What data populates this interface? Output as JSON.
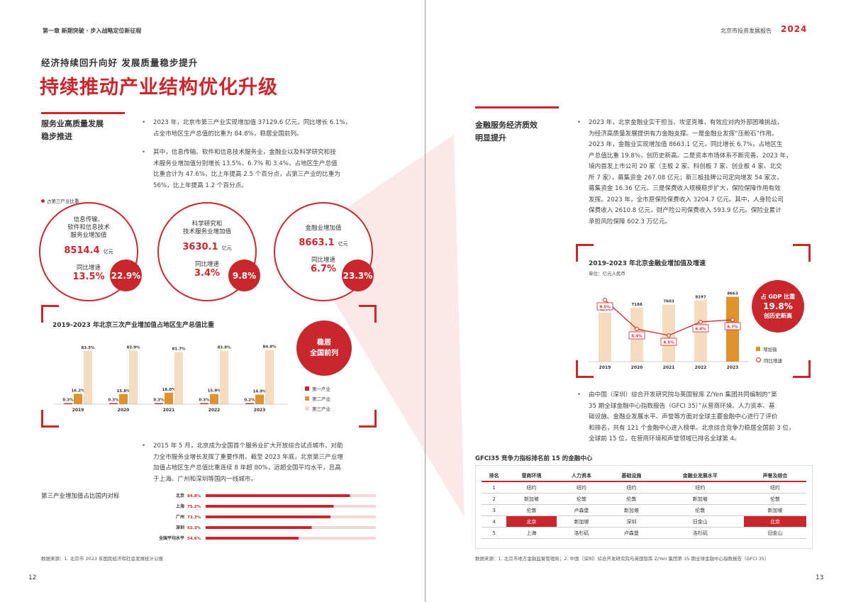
{
  "left": {
    "header": "第一章 新期突破 · 步入战略定位新征程",
    "subtitle": "经济持续回升向好 发展质量稳步提升",
    "title": "持续推动产业结构优化升级",
    "section1_heading_l1": "服务业高质量发展",
    "section1_heading_l2": "稳步推进",
    "bullet1_lines": [
      "2023 年，北京市第三产业实现增加值 37129.6 亿元，同比增长 6.1%，",
      "占全市地区生产总值的比重为 84.8%，稳居全国前列。"
    ],
    "bullet2_lines": [
      "其中，信息传输、软件和信息技术服务业，金融业以及科学研究和技",
      "术服务业增加值分别增长 13.5%、6.7% 和 3.4%，占地区生产总值",
      "比重合计为 47.6%，比上年提高 2.5 个百分点，占第三产业的比重为",
      "56%，比上年提高 1.2 个百分点。"
    ],
    "circle_legend": "占第三产业比重",
    "circles": [
      {
        "name_lines": [
          "信息传输、",
          "软件和信息技术",
          "服务业增加值"
        ],
        "value": "8514.4",
        "unit": "亿元",
        "growth_label": "同比增速",
        "growth": "13.5%",
        "share": "22.9%"
      },
      {
        "name_lines": [
          "科学研究和",
          "技术服务业增加值"
        ],
        "value": "3630.1",
        "unit": "亿元",
        "growth_label": "同比增速",
        "growth": "3.4%",
        "share": "9.8%"
      },
      {
        "name_lines": [
          "金融业增加值"
        ],
        "value": "8663.1",
        "unit": "亿元",
        "growth_label": "同比增速",
        "growth": "6.7%",
        "share": "23.3%"
      }
    ],
    "chart1_badge_l1": "稳居",
    "chart1_badge_l2": "全国前列",
    "bullet3_lines": [
      "2015 年 5 月，北京成为全国首个服务业扩大开放综合试点城市，对助",
      "力全市服务业增长发挥了重要作用。截至 2023 年底，北京第三产业增",
      "加值占地区生产总值比重连续 8 年超 80%，远超全国平均水平，且高",
      "于上海、广州和深圳等国内一线城市。"
    ],
    "chart3_title": "第三产业增加值占比国内对标",
    "source": "数据来源：1. 北京市 2023 年国民经济和社会发展统计公报",
    "page_number": "12"
  },
  "right": {
    "header": "北京市投资发展报告",
    "header_year": "2024",
    "section_heading_l1": "金融服务经济质效",
    "section_heading_l2": "明显提升",
    "bullet1_lines": [
      "2023 年，北京金融业实干担当、攻坚克难，有效应对内外部困难挑战，",
      "为经济高质量发展提供有力金融支撑。一是金融业发挥“压舱石”作用。",
      "2023 年，金融业实现增加值 8663.1 亿元，同比增长 6.7%，占地区生",
      "产总值比重 19.8%，创历史新高。二是资本市场体系不断完善。2023 年，",
      "境内首发上市公司 20 家（主板 2 家、科创板 7 家、创业板 4 家、北交",
      "所 7 家），募集资金 267.08 亿元；新三板挂牌公司定向增发 54 家次，",
      "募集资金 16.36 亿元。三是保费收入规模稳步扩大，保险保障作用有效",
      "发挥。2023 年，全市原保险保费收入 3204.7 亿元。其中，人身险公司",
      "保费收入 2610.8 亿元，财产险公司保费收入 593.9 亿元。保险业累计",
      "承担风险保障 602.3 万亿元。"
    ],
    "chart2_badge_l1": "占 GDP 比重",
    "chart2_badge_l2": "19.8%",
    "chart2_badge_l3": "创历史新高",
    "bullet2_lines": [
      "由中国（深圳）综合开发研究院与英国智库 Z/Yen 集团共同编制的“第",
      "35 期全球金融中心指数报告（GFCI 35）”从营商环境、人力资本、基",
      "础设施、金融业发展水平、声誉等方面对全球主要金融中心进行了评价",
      "和排名，共有 121 个金融中心进入榜单。北京综合竞争力稳居全国前 3 位，",
      "全球前 15 位，在营商环境和声誉领域已排名全球第 4。"
    ],
    "table_title": "GFCI35 竞争力指标排名前 15 的金融中心",
    "table": {
      "headers": [
        "排名",
        "营商环境",
        "人力资本",
        "基础设施",
        "金融业发展水平",
        "声誉及综合"
      ],
      "rows": [
        [
          "1",
          "纽约",
          "纽约",
          "纽约",
          "纽约",
          "纽约"
        ],
        [
          "2",
          "新加坡",
          "伦敦",
          "伦敦",
          "新加坡",
          "伦敦"
        ],
        [
          "3",
          "伦敦",
          "卢森堡",
          "新加坡",
          "伦敦",
          "新加坡"
        ],
        [
          "4",
          "北京",
          "新加坡",
          "深圳",
          "旧金山",
          "北京"
        ],
        [
          "5",
          "上海",
          "洛杉矶",
          "卢森堡",
          "洛杉矶",
          "旧金山"
        ]
      ],
      "highlight_cells": [
        [
          3,
          1
        ],
        [
          3,
          5
        ]
      ]
    },
    "source": "数据来源：1. 北京市地方金融监督管理局；2. 中国（深圳）综合开发研究院与英国智库 Z/Yen 集团第 35 期全球金融中心指数报告（GFCI 35）",
    "page_number": "13"
  },
  "colors": {
    "accent": "#c8272d",
    "orange": "#e0922f",
    "peach": "#f5dcc0"
  },
  "chart_data": [
    {
      "type": "bar",
      "title": "2019-2023 年北京三次产业增加值占地区生产总值比重",
      "categories": [
        "2019",
        "2020",
        "2021",
        "2022",
        "2023"
      ],
      "series": [
        {
          "name": "第一产业",
          "values": [
            0.3,
            0.3,
            0.3,
            0.3,
            0.2
          ],
          "labels": [
            "0.3%",
            "0.3%",
            "0.3%",
            "0.3%",
            "0.2%"
          ],
          "color": "#c8272d"
        },
        {
          "name": "第二产业",
          "values": [
            16.2,
            15.8,
            18.0,
            15.9,
            14.9
          ],
          "labels": [
            "16.2%",
            "15.8%",
            "18.0%",
            "15.9%",
            "14.9%"
          ],
          "color": "#e0922f"
        },
        {
          "name": "第三产业",
          "values": [
            83.5,
            83.9,
            81.7,
            83.8,
            84.8
          ],
          "labels": [
            "83.5%",
            "83.9%",
            "81.7%",
            "83.8%",
            "84.8%"
          ],
          "color": "#f5dcc0"
        }
      ]
    },
    {
      "type": "bar",
      "title": "2019-2023 年北京金融业增加值及增速",
      "unit_label": "单位：亿元人民币",
      "categories": [
        "2019",
        "2020",
        "2021",
        "2022",
        "2023"
      ],
      "series": [
        {
          "name": "增加值",
          "values": [
            6544,
            7188,
            7603,
            8197,
            8663
          ],
          "color": "#f5dcc0",
          "highlight_last": "#e0922f"
        },
        {
          "name": "同比增速",
          "type": "line",
          "values": [
            9.5,
            5.4,
            4.5,
            6.4,
            6.7
          ],
          "labels": [
            "9.5%",
            "5.4%",
            "4.5%",
            "6.4%",
            "6.7%"
          ],
          "color": "#c8272d"
        }
      ]
    },
    {
      "type": "bar",
      "orientation": "horizontal",
      "title": "第三产业增加值占比国内对标",
      "categories": [
        "北京",
        "上海",
        "广州",
        "深圳",
        "全国平均水平"
      ],
      "values": [
        84.8,
        75.2,
        73.3,
        62.3,
        54.6
      ],
      "labels": [
        "84.8%",
        "75.2%",
        "73.3%",
        "62.3%",
        "54.6%"
      ],
      "xlim": [
        0,
        100
      ]
    }
  ]
}
